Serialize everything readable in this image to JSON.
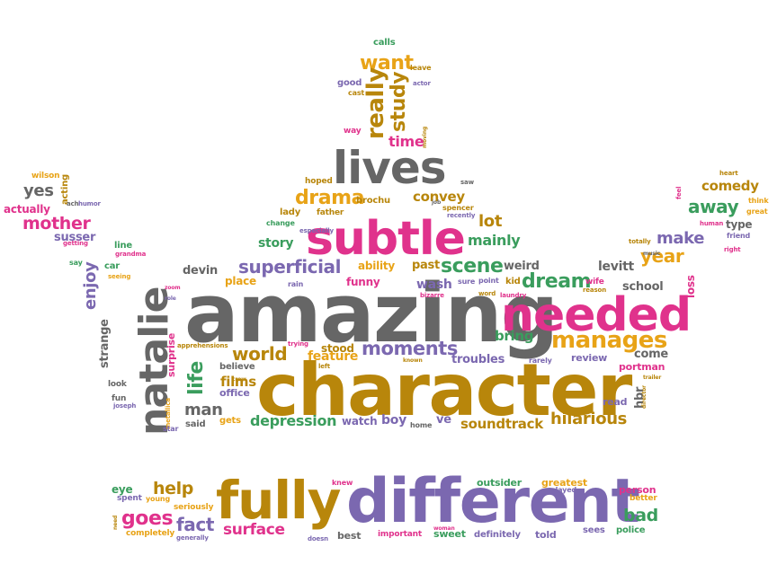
{
  "words": [
    {
      "text": "amazing",
      "color": "#666666"
    },
    {
      "text": "character",
      "color": "#b8860b"
    },
    {
      "text": "different",
      "color": "#7b68b0"
    },
    {
      "text": "subtle",
      "color": "#e0328c"
    },
    {
      "text": "needed",
      "color": "#e0328c"
    },
    {
      "text": "lives",
      "color": "#666666"
    },
    {
      "text": "fully",
      "color": "#b8860b"
    },
    {
      "text": "natalie",
      "color": "#666666"
    },
    {
      "text": "manages",
      "color": "#e8a317"
    },
    {
      "text": "drama",
      "color": "#e8a317"
    },
    {
      "text": "superficial",
      "color": "#7b68b0"
    },
    {
      "text": "scene",
      "color": "#3a9d5d"
    },
    {
      "text": "dream",
      "color": "#3a9d5d"
    },
    {
      "text": "want",
      "color": "#e8a317"
    },
    {
      "text": "really",
      "color": "#b8860b"
    },
    {
      "text": "study",
      "color": "#b8860b"
    },
    {
      "text": "time",
      "color": "#e0328c"
    },
    {
      "text": "moments",
      "color": "#7b68b0"
    },
    {
      "text": "world",
      "color": "#b8860b"
    },
    {
      "text": "life",
      "color": "#3a9d5d"
    },
    {
      "text": "man",
      "color": "#666666"
    },
    {
      "text": "films",
      "color": "#b8860b"
    },
    {
      "text": "depression",
      "color": "#3a9d5d"
    },
    {
      "text": "soundtrack",
      "color": "#b8860b"
    },
    {
      "text": "hilarious",
      "color": "#b8860b"
    },
    {
      "text": "goes",
      "color": "#e0328c"
    },
    {
      "text": "fact",
      "color": "#7b68b0"
    },
    {
      "text": "help",
      "color": "#b8860b"
    },
    {
      "text": "surface",
      "color": "#e0328c"
    },
    {
      "text": "bad",
      "color": "#3a9d5d"
    },
    {
      "text": "mother",
      "color": "#e0328c"
    },
    {
      "text": "yes",
      "color": "#666666"
    },
    {
      "text": "enjoy",
      "color": "#7b68b0"
    },
    {
      "text": "away",
      "color": "#3a9d5d"
    },
    {
      "text": "make",
      "color": "#7b68b0"
    },
    {
      "text": "year",
      "color": "#e8a317"
    },
    {
      "text": "comedy",
      "color": "#b8860b"
    },
    {
      "text": "lot",
      "color": "#b8860b"
    },
    {
      "text": "mainly",
      "color": "#3a9d5d"
    },
    {
      "text": "convey",
      "color": "#b8860b"
    },
    {
      "text": "story",
      "color": "#3a9d5d"
    },
    {
      "text": "bring",
      "color": "#3a9d5d"
    },
    {
      "text": "troubles",
      "color": "#7b68b0"
    },
    {
      "text": "feature",
      "color": "#e8a317"
    },
    {
      "text": "stood",
      "color": "#b8860b"
    },
    {
      "text": "funny",
      "color": "#e0328c"
    },
    {
      "text": "ability",
      "color": "#e8a317"
    },
    {
      "text": "past",
      "color": "#b8860b"
    },
    {
      "text": "wash",
      "color": "#7b68b0"
    },
    {
      "text": "weird",
      "color": "#666666"
    },
    {
      "text": "levitt",
      "color": "#666666"
    },
    {
      "text": "school",
      "color": "#666666"
    },
    {
      "text": "loss",
      "color": "#e0328c"
    },
    {
      "text": "come",
      "color": "#666666"
    },
    {
      "text": "portman",
      "color": "#e0328c"
    },
    {
      "text": "review",
      "color": "#7b68b0"
    },
    {
      "text": "read",
      "color": "#7b68b0"
    },
    {
      "text": "hbr",
      "color": "#666666"
    },
    {
      "text": "devin",
      "color": "#666666"
    },
    {
      "text": "place",
      "color": "#e8a317"
    },
    {
      "text": "strange",
      "color": "#666666"
    },
    {
      "text": "surprise",
      "color": "#e0328c"
    },
    {
      "text": "office",
      "color": "#7b68b0"
    },
    {
      "text": "believe",
      "color": "#666666"
    },
    {
      "text": "gets",
      "color": "#e8a317"
    },
    {
      "text": "said",
      "color": "#666666"
    },
    {
      "text": "watch",
      "color": "#7b68b0"
    },
    {
      "text": "boy",
      "color": "#7b68b0"
    },
    {
      "text": "ve",
      "color": "#7b68b0"
    },
    {
      "text": "susser",
      "color": "#7b68b0"
    },
    {
      "text": "actually",
      "color": "#e0328c"
    },
    {
      "text": "acting",
      "color": "#b8860b"
    },
    {
      "text": "wilson",
      "color": "#e8a317"
    },
    {
      "text": "lady",
      "color": "#b8860b"
    },
    {
      "text": "father",
      "color": "#b8860b"
    },
    {
      "text": "brochu",
      "color": "#b8860b"
    },
    {
      "text": "hoped",
      "color": "#b8860b"
    },
    {
      "text": "spencer",
      "color": "#b8860b"
    },
    {
      "text": "kid",
      "color": "#b8860b"
    },
    {
      "text": "good",
      "color": "#7b68b0"
    },
    {
      "text": "cast",
      "color": "#b8860b"
    },
    {
      "text": "calls",
      "color": "#3a9d5d"
    },
    {
      "text": "leave",
      "color": "#b8860b"
    },
    {
      "text": "actor",
      "color": "#7b68b0"
    },
    {
      "text": "way",
      "color": "#e0328c"
    },
    {
      "text": "line",
      "color": "#3a9d5d"
    },
    {
      "text": "car",
      "color": "#3a9d5d"
    },
    {
      "text": "eye",
      "color": "#3a9d5d"
    },
    {
      "text": "knew",
      "color": "#e0328c"
    },
    {
      "text": "outsider",
      "color": "#3a9d5d"
    },
    {
      "text": "greatest",
      "color": "#e8a317"
    },
    {
      "text": "person",
      "color": "#e0328c"
    },
    {
      "text": "better",
      "color": "#e8a317"
    },
    {
      "text": "police",
      "color": "#3a9d5d"
    },
    {
      "text": "sees",
      "color": "#7b68b0"
    },
    {
      "text": "told",
      "color": "#7b68b0"
    },
    {
      "text": "definitely",
      "color": "#7b68b0"
    },
    {
      "text": "sweet",
      "color": "#3a9d5d"
    },
    {
      "text": "important",
      "color": "#e0328c"
    },
    {
      "text": "best",
      "color": "#666666"
    },
    {
      "text": "completely",
      "color": "#e8a317"
    },
    {
      "text": "seriously",
      "color": "#e8a317"
    },
    {
      "text": "spent",
      "color": "#7b68b0"
    },
    {
      "text": "young",
      "color": "#e8a317"
    },
    {
      "text": "played",
      "color": "#7b68b0"
    },
    {
      "text": "generally",
      "color": "#7b68b0"
    },
    {
      "text": "type",
      "color": "#666666"
    },
    {
      "text": "friend",
      "color": "#7b68b0"
    },
    {
      "text": "change",
      "color": "#3a9d5d"
    },
    {
      "text": "look",
      "color": "#666666"
    },
    {
      "text": "fun",
      "color": "#666666"
    },
    {
      "text": "metallica",
      "color": "#e8a317"
    },
    {
      "text": "home",
      "color": "#666666"
    },
    {
      "text": "laundry",
      "color": "#e0328c"
    },
    {
      "text": "rarely",
      "color": "#7b68b0"
    },
    {
      "text": "sure",
      "color": "#7b68b0"
    },
    {
      "text": "point",
      "color": "#7b68b0"
    },
    {
      "text": "bizarre",
      "color": "#e0328c"
    },
    {
      "text": "rain",
      "color": "#7b68b0"
    },
    {
      "text": "wife",
      "color": "#e0328c"
    },
    {
      "text": "reason",
      "color": "#b8860b"
    },
    {
      "text": "trailer",
      "color": "#b8860b"
    },
    {
      "text": "director",
      "color": "#b8860b"
    },
    {
      "text": "star",
      "color": "#7b68b0"
    },
    {
      "text": "heart",
      "color": "#b8860b"
    },
    {
      "text": "think",
      "color": "#e8a317"
    },
    {
      "text": "great",
      "color": "#e8a317"
    },
    {
      "text": "human",
      "color": "#e0328c"
    },
    {
      "text": "right",
      "color": "#e0328c"
    },
    {
      "text": "totally",
      "color": "#b8860b"
    },
    {
      "text": "music",
      "color": "#666666"
    },
    {
      "text": "feel",
      "color": "#e0328c"
    },
    {
      "text": "say",
      "color": "#3a9d5d"
    },
    {
      "text": "grandma",
      "color": "#e0328c"
    },
    {
      "text": "seeing",
      "color": "#e8a317"
    },
    {
      "text": "getting",
      "color": "#e0328c"
    },
    {
      "text": "joseph",
      "color": "#7b68b0"
    },
    {
      "text": "apprehensions",
      "color": "#b8860b"
    },
    {
      "text": "crew",
      "color": "#b8860b"
    },
    {
      "text": "left",
      "color": "#b8860b"
    },
    {
      "text": "trying",
      "color": "#e0328c"
    },
    {
      "text": "known",
      "color": "#b8860b"
    },
    {
      "text": "doesn",
      "color": "#7b68b0"
    },
    {
      "text": "need",
      "color": "#b8860b"
    },
    {
      "text": "especially",
      "color": "#7b68b0"
    },
    {
      "text": "job",
      "color": "#666666"
    },
    {
      "text": "recently",
      "color": "#7b68b0"
    },
    {
      "text": "saw",
      "color": "#666666"
    },
    {
      "text": "word",
      "color": "#b8860b"
    },
    {
      "text": "role",
      "color": "#7b68b0"
    },
    {
      "text": "zoom",
      "color": "#e0328c"
    },
    {
      "text": "ach",
      "color": "#666666"
    },
    {
      "text": "humor",
      "color": "#7b68b0"
    },
    {
      "text": "moving",
      "color": "#b8860b"
    },
    {
      "text": "woman",
      "color": "#e0328c"
    }
  ]
}
